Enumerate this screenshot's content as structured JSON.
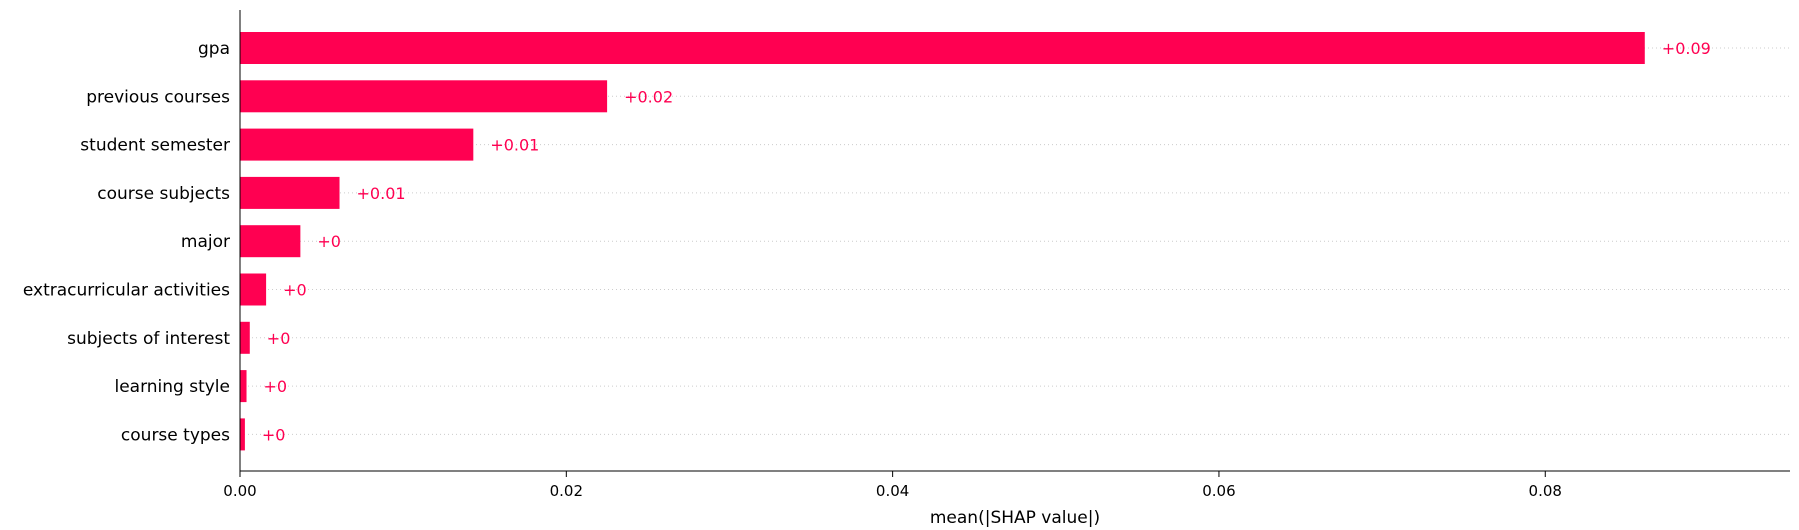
{
  "chart_data": {
    "type": "bar",
    "orientation": "horizontal",
    "title": "",
    "xlabel": "mean(|SHAP value|)",
    "ylabel": "",
    "xlim": [
      0,
      0.095
    ],
    "xticks": [
      0,
      0.02,
      0.04,
      0.06,
      0.08
    ],
    "xtick_labels": [
      "0.00",
      "0.02",
      "0.04",
      "0.06",
      "0.08"
    ],
    "grid": "horizontal dotted",
    "bar_color": "#ff0051",
    "categories": [
      "gpa",
      "previous courses",
      "student semester",
      "course subjects",
      "major",
      "extracurricular activities",
      "subjects of interest",
      "learning style",
      "course types"
    ],
    "values": [
      0.0861,
      0.0225,
      0.0143,
      0.0061,
      0.0037,
      0.0016,
      0.0006,
      0.0004,
      0.0003
    ],
    "value_labels": [
      "+0.09",
      "+0.02",
      "+0.01",
      "+0.01",
      "+0",
      "+0",
      "+0",
      "+0",
      "+0"
    ]
  }
}
